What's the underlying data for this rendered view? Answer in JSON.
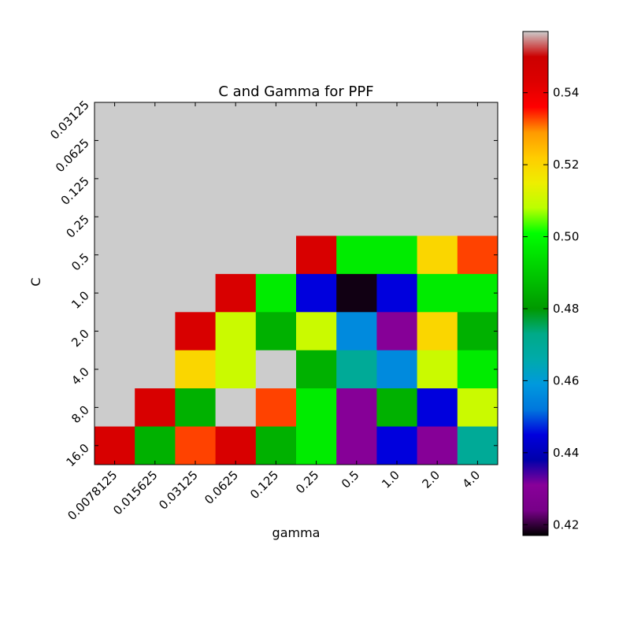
{
  "chart_data": {
    "type": "heatmap",
    "title": "C and Gamma for PPF",
    "xlabel": "gamma",
    "ylabel": "C",
    "x_categories": [
      "0.0078125",
      "0.015625",
      "0.03125",
      "0.0625",
      "0.125",
      "0.25",
      "0.5",
      "1.0",
      "2.0",
      "4.0"
    ],
    "y_categories": [
      "0.03125",
      "0.0625",
      "0.125",
      "0.25",
      "0.5",
      "1.0",
      "2.0",
      "4.0",
      "8.0",
      "16.0"
    ],
    "values": [
      [
        null,
        null,
        null,
        null,
        null,
        null,
        null,
        null,
        null,
        null
      ],
      [
        null,
        null,
        null,
        null,
        null,
        null,
        null,
        null,
        null,
        null
      ],
      [
        null,
        null,
        null,
        null,
        null,
        null,
        null,
        null,
        null,
        null
      ],
      [
        null,
        null,
        null,
        null,
        null,
        null,
        null,
        null,
        null,
        null
      ],
      [
        null,
        null,
        null,
        null,
        null,
        0.545,
        0.497,
        0.497,
        0.52,
        0.533
      ],
      [
        null,
        null,
        null,
        0.545,
        0.497,
        0.445,
        0.418,
        0.445,
        0.497,
        0.497
      ],
      [
        null,
        null,
        0.545,
        0.51,
        0.485,
        0.51,
        0.456,
        0.43,
        0.52,
        0.485
      ],
      [
        null,
        null,
        0.52,
        0.51,
        null,
        0.485,
        0.47,
        0.456,
        0.51,
        0.497
      ],
      [
        null,
        0.545,
        0.485,
        null,
        0.533,
        0.497,
        0.43,
        0.485,
        0.445,
        0.51
      ],
      [
        0.545,
        0.485,
        0.533,
        0.545,
        0.485,
        0.497,
        0.43,
        0.445,
        0.43,
        0.47
      ]
    ],
    "missing_color": "#cccccc",
    "colorbar": {
      "colormap": "nipy_spectral",
      "vmin": 0.417,
      "vmax": 0.557,
      "ticks": [
        0.42,
        0.44,
        0.46,
        0.48,
        0.5,
        0.52,
        0.54
      ],
      "tick_labels": [
        "0.42",
        "0.44",
        "0.46",
        "0.48",
        "0.50",
        "0.52",
        "0.54"
      ]
    }
  }
}
